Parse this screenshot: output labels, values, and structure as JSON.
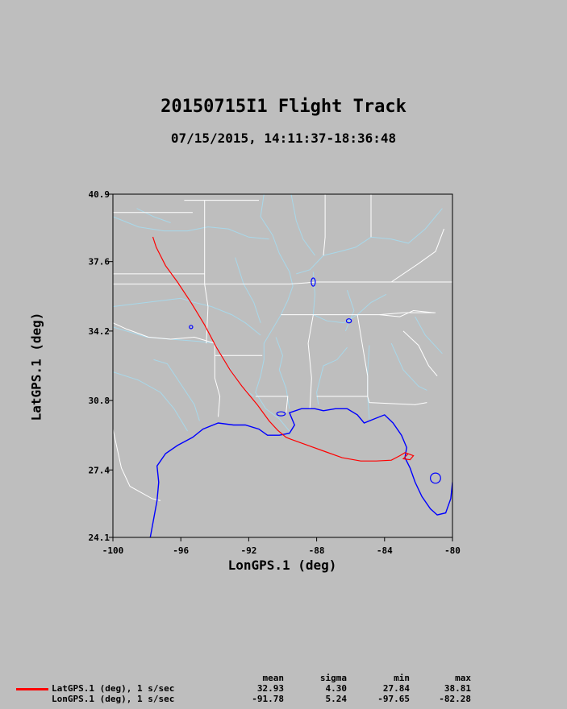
{
  "chart_data": {
    "type": "line",
    "title": "20150715I1 Flight Track",
    "subtitle": "07/15/2015, 14:11:37-18:36:48",
    "xlabel": "LonGPS.1 (deg)",
    "ylabel": "LatGPS.1 (deg)",
    "xlim": [
      -100,
      -80
    ],
    "ylim": [
      24.1,
      40.9
    ],
    "xticks": [
      "-100",
      "-96",
      "-92",
      "-88",
      "-84",
      "-80"
    ],
    "yticks": [
      "40.9",
      "37.6",
      "34.2",
      "30.8",
      "27.4",
      "24.1"
    ],
    "series": [
      {
        "name": "LatGPS.1 (deg), 1 s/sec",
        "color": "#ff0000",
        "x": [
          -97.65,
          -97.45,
          -97.2,
          -96.9,
          -96.2,
          -95.4,
          -94.6,
          -93.9,
          -93.1,
          -92.4,
          -91.5,
          -90.8,
          -90.3,
          -89.8,
          -89.5,
          -88.5,
          -87.5,
          -86.5,
          -85.4,
          -84.5,
          -83.6,
          -83.1,
          -82.8,
          -82.3,
          -82.5,
          -82.9,
          -82.6
        ],
        "y": [
          38.81,
          38.3,
          37.9,
          37.4,
          36.6,
          35.6,
          34.5,
          33.4,
          32.3,
          31.5,
          30.6,
          29.8,
          29.35,
          29.0,
          28.9,
          28.6,
          28.3,
          28.0,
          27.84,
          27.84,
          27.88,
          28.1,
          28.25,
          28.1,
          27.9,
          27.95,
          28.2
        ]
      }
    ],
    "stats": {
      "headers": [
        "mean",
        "sigma",
        "min",
        "max"
      ],
      "rows": [
        {
          "label": "LatGPS.1 (deg), 1 s/sec",
          "mean": "32.93",
          "sigma": "4.30",
          "min": "27.84",
          "max": "38.81"
        },
        {
          "label": "LonGPS.1 (deg), 1 s/sec",
          "mean": "-91.78",
          "sigma": "5.24",
          "min": "-97.65",
          "max": "-82.28"
        }
      ]
    },
    "map_colors": {
      "boundaries": "#ffffff",
      "rivers": "#a8d8ea",
      "coastline": "#0000ff"
    }
  }
}
